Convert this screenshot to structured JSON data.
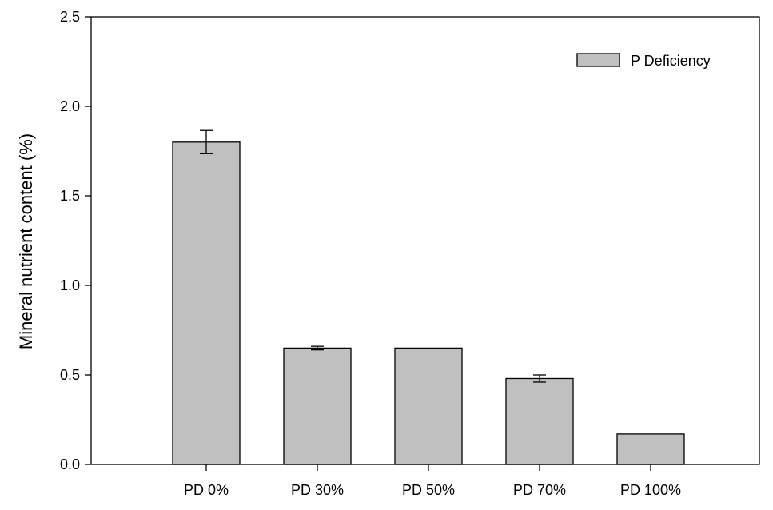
{
  "chart_data": {
    "type": "bar",
    "title": "",
    "xlabel": "",
    "ylabel": "Mineral nutrient content (%)",
    "ylim": [
      0,
      2.5
    ],
    "yticks": [
      "0.0",
      "0.5",
      "1.0",
      "1.5",
      "2.0",
      "2.5"
    ],
    "categories": [
      "PD 0%",
      "PD 30%",
      "PD 50%",
      "PD 70%",
      "PD 100%"
    ],
    "series": [
      {
        "name": "P Deficiency",
        "values": [
          1.8,
          0.65,
          0.65,
          0.48,
          0.17
        ],
        "errors": [
          0.065,
          0.01,
          0,
          0.02,
          0
        ],
        "color": "#c0c0c0"
      }
    ],
    "legend_position": "top-right",
    "grid": false
  }
}
